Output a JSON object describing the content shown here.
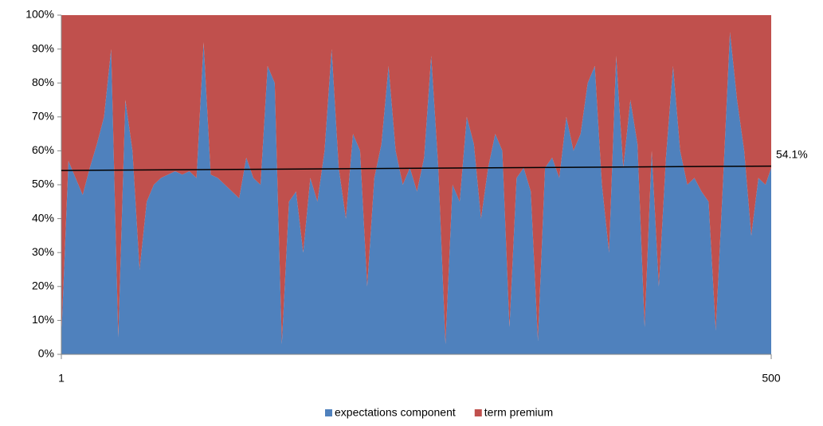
{
  "chart_data": {
    "type": "stacked_area",
    "x": [
      1,
      6,
      11,
      16,
      21,
      26,
      31,
      36,
      41,
      46,
      51,
      56,
      61,
      66,
      71,
      76,
      81,
      86,
      91,
      96,
      101,
      106,
      111,
      116,
      121,
      126,
      131,
      136,
      141,
      146,
      151,
      156,
      161,
      166,
      171,
      176,
      181,
      186,
      191,
      196,
      201,
      206,
      211,
      216,
      221,
      226,
      231,
      236,
      241,
      246,
      251,
      256,
      261,
      266,
      271,
      276,
      281,
      286,
      291,
      296,
      301,
      306,
      311,
      316,
      321,
      326,
      331,
      336,
      341,
      346,
      351,
      356,
      361,
      366,
      371,
      376,
      381,
      386,
      391,
      396,
      401,
      406,
      411,
      416,
      421,
      426,
      431,
      436,
      441,
      446,
      451,
      456,
      461,
      466,
      471,
      476,
      481,
      486,
      491,
      496,
      500
    ],
    "series": [
      {
        "name": "expectations component",
        "color": "#4f81bd",
        "values": [
          5,
          57,
          52,
          47,
          55,
          62,
          70,
          90,
          5,
          75,
          60,
          25,
          45,
          50,
          52,
          53,
          54,
          53,
          54,
          52,
          92,
          53,
          52,
          50,
          48,
          46,
          58,
          52,
          50,
          85,
          80,
          3,
          45,
          48,
          30,
          52,
          45,
          60,
          90,
          55,
          40,
          65,
          60,
          20,
          52,
          62,
          85,
          60,
          50,
          55,
          48,
          58,
          88,
          55,
          3,
          50,
          45,
          70,
          62,
          40,
          55,
          65,
          60,
          8,
          52,
          55,
          48,
          4,
          55,
          58,
          52,
          70,
          60,
          65,
          80,
          85,
          50,
          30,
          88,
          55,
          75,
          62,
          8,
          60,
          20,
          58,
          85,
          60,
          50,
          52,
          48,
          45,
          7,
          50,
          95,
          75,
          60,
          35,
          52,
          50,
          55
        ]
      },
      {
        "name": "term premium",
        "color": "#c0504d",
        "values": [
          95,
          43,
          48,
          53,
          45,
          38,
          30,
          10,
          95,
          25,
          40,
          75,
          55,
          50,
          48,
          47,
          46,
          47,
          46,
          48,
          8,
          47,
          48,
          50,
          52,
          54,
          42,
          48,
          50,
          15,
          20,
          97,
          55,
          52,
          70,
          48,
          55,
          40,
          10,
          45,
          60,
          35,
          40,
          80,
          48,
          38,
          15,
          40,
          50,
          45,
          52,
          42,
          12,
          45,
          97,
          50,
          55,
          30,
          38,
          60,
          45,
          35,
          40,
          92,
          48,
          45,
          52,
          96,
          45,
          42,
          48,
          30,
          40,
          35,
          20,
          15,
          50,
          70,
          12,
          45,
          25,
          38,
          92,
          40,
          80,
          42,
          15,
          40,
          50,
          48,
          52,
          55,
          93,
          50,
          5,
          25,
          40,
          65,
          48,
          50,
          45
        ]
      }
    ],
    "trend": {
      "x": [
        1,
        500
      ],
      "values": [
        54.2,
        55.5
      ],
      "color": "#000000"
    },
    "annotation": {
      "value": 54.1,
      "label": "54.1%"
    },
    "xlim": [
      1,
      500
    ],
    "xticks": [
      1,
      500
    ],
    "ylim": [
      0,
      100
    ],
    "yticks": [
      {
        "value": 0,
        "label": "0%"
      },
      {
        "value": 10,
        "label": "10%"
      },
      {
        "value": 20,
        "label": "20%"
      },
      {
        "value": 30,
        "label": "30%"
      },
      {
        "value": 40,
        "label": "40%"
      },
      {
        "value": 50,
        "label": "50%"
      },
      {
        "value": 60,
        "label": "60%"
      },
      {
        "value": 70,
        "label": "70%"
      },
      {
        "value": 80,
        "label": "80%"
      },
      {
        "value": 90,
        "label": "90%"
      },
      {
        "value": 100,
        "label": "100%"
      }
    ]
  }
}
